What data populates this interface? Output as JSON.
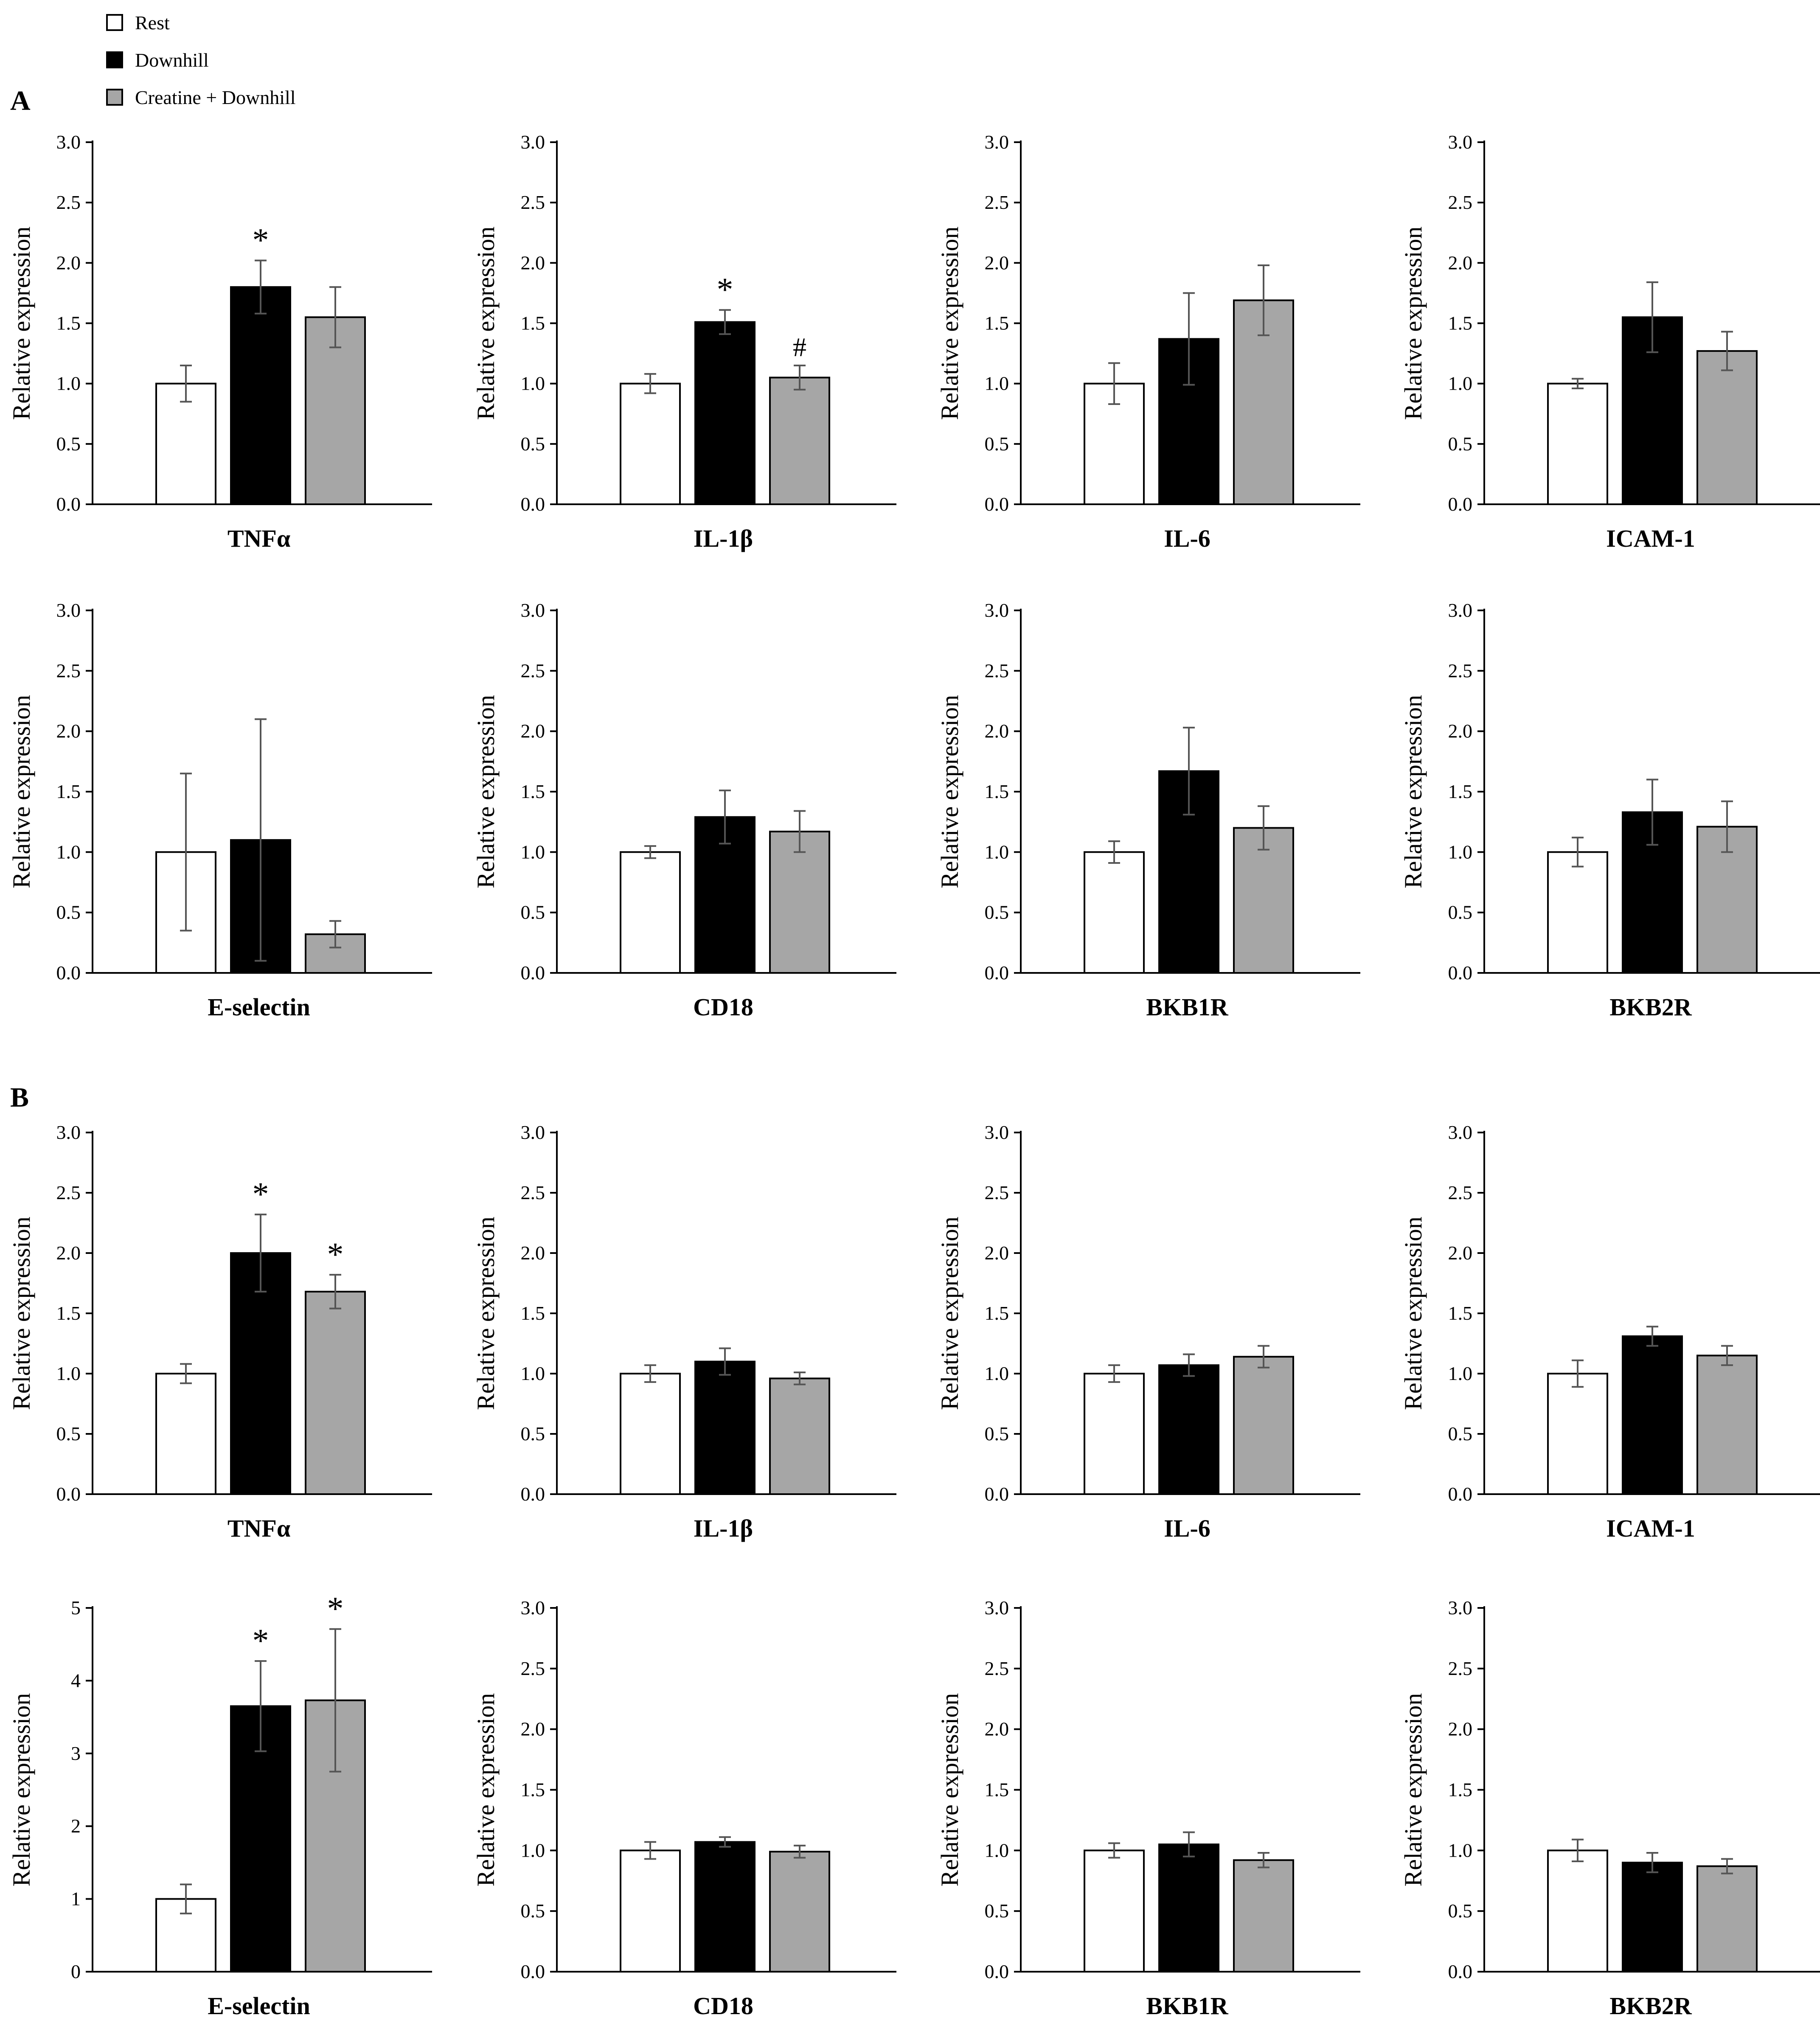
{
  "legend": {
    "rest": "Rest",
    "downhill": "Downhill",
    "creatine": "Creatine + Downhill"
  },
  "colors": {
    "rest": "#ffffff",
    "downhill": "#000000",
    "creatine": "#a6a6a6",
    "axis": "#000000",
    "errorbar": "#555555"
  },
  "panel_labels": {
    "a": "A",
    "b": "B"
  },
  "chart_data": [
    {
      "panel": "A",
      "type": "bar",
      "title": "TNFα",
      "xlabel": "TNFα",
      "ylabel": "Relative expression",
      "ylim": [
        0,
        3
      ],
      "yticks": [
        "0.0",
        "0.5",
        "1.0",
        "1.5",
        "2.0",
        "2.5",
        "3.0"
      ],
      "series": [
        {
          "name": "Rest",
          "value": 1.0,
          "error": 0.15
        },
        {
          "name": "Downhill",
          "value": 1.8,
          "error": 0.22,
          "mark": "*"
        },
        {
          "name": "Creatine + Downhill",
          "value": 1.55,
          "error": 0.25
        }
      ]
    },
    {
      "panel": "A",
      "type": "bar",
      "title": "IL-1β",
      "xlabel": "IL-1β",
      "ylabel": "Relative expression",
      "ylim": [
        0,
        3
      ],
      "yticks": [
        "0.0",
        "0.5",
        "1.0",
        "1.5",
        "2.0",
        "2.5",
        "3.0"
      ],
      "series": [
        {
          "name": "Rest",
          "value": 1.0,
          "error": 0.08
        },
        {
          "name": "Downhill",
          "value": 1.51,
          "error": 0.1,
          "mark": "*"
        },
        {
          "name": "Creatine + Downhill",
          "value": 1.05,
          "error": 0.1,
          "mark": "#"
        }
      ]
    },
    {
      "panel": "A",
      "type": "bar",
      "title": "IL-6",
      "xlabel": "IL-6",
      "ylabel": "Relative expression",
      "ylim": [
        0,
        3
      ],
      "yticks": [
        "0.0",
        "0.5",
        "1.0",
        "1.5",
        "2.0",
        "2.5",
        "3.0"
      ],
      "series": [
        {
          "name": "Rest",
          "value": 1.0,
          "error": 0.17
        },
        {
          "name": "Downhill",
          "value": 1.37,
          "error": 0.38
        },
        {
          "name": "Creatine + Downhill",
          "value": 1.69,
          "error": 0.29
        }
      ]
    },
    {
      "panel": "A",
      "type": "bar",
      "title": "ICAM-1",
      "xlabel": "ICAM-1",
      "ylabel": "Relative expression",
      "ylim": [
        0,
        3
      ],
      "yticks": [
        "0.0",
        "0.5",
        "1.0",
        "1.5",
        "2.0",
        "2.5",
        "3.0"
      ],
      "series": [
        {
          "name": "Rest",
          "value": 1.0,
          "error": 0.04
        },
        {
          "name": "Downhill",
          "value": 1.55,
          "error": 0.29
        },
        {
          "name": "Creatine + Downhill",
          "value": 1.27,
          "error": 0.16
        }
      ]
    },
    {
      "panel": "A",
      "type": "bar",
      "title": "E-selectin",
      "xlabel": "E-selectin",
      "ylabel": "Relative expression",
      "ylim": [
        0,
        3
      ],
      "yticks": [
        "0.0",
        "0.5",
        "1.0",
        "1.5",
        "2.0",
        "2.5",
        "3.0"
      ],
      "series": [
        {
          "name": "Rest",
          "value": 1.0,
          "error": 0.65
        },
        {
          "name": "Downhill",
          "value": 1.1,
          "error": 1.0
        },
        {
          "name": "Creatine + Downhill",
          "value": 0.32,
          "error": 0.11
        }
      ]
    },
    {
      "panel": "A",
      "type": "bar",
      "title": "CD18",
      "xlabel": "CD18",
      "ylabel": "Relative expression",
      "ylim": [
        0,
        3
      ],
      "yticks": [
        "0.0",
        "0.5",
        "1.0",
        "1.5",
        "2.0",
        "2.5",
        "3.0"
      ],
      "series": [
        {
          "name": "Rest",
          "value": 1.0,
          "error": 0.05
        },
        {
          "name": "Downhill",
          "value": 1.29,
          "error": 0.22
        },
        {
          "name": "Creatine + Downhill",
          "value": 1.17,
          "error": 0.17
        }
      ]
    },
    {
      "panel": "A",
      "type": "bar",
      "title": "BKB1R",
      "xlabel": "BKB1R",
      "ylabel": "Relative expression",
      "ylim": [
        0,
        3
      ],
      "yticks": [
        "0.0",
        "0.5",
        "1.0",
        "1.5",
        "2.0",
        "2.5",
        "3.0"
      ],
      "series": [
        {
          "name": "Rest",
          "value": 1.0,
          "error": 0.09
        },
        {
          "name": "Downhill",
          "value": 1.67,
          "error": 0.36
        },
        {
          "name": "Creatine + Downhill",
          "value": 1.2,
          "error": 0.18
        }
      ]
    },
    {
      "panel": "A",
      "type": "bar",
      "title": "BKB2R",
      "xlabel": "BKB2R",
      "ylabel": "Relative expression",
      "ylim": [
        0,
        3
      ],
      "yticks": [
        "0.0",
        "0.5",
        "1.0",
        "1.5",
        "2.0",
        "2.5",
        "3.0"
      ],
      "series": [
        {
          "name": "Rest",
          "value": 1.0,
          "error": 0.12
        },
        {
          "name": "Downhill",
          "value": 1.33,
          "error": 0.27
        },
        {
          "name": "Creatine + Downhill",
          "value": 1.21,
          "error": 0.21
        }
      ]
    },
    {
      "panel": "B",
      "type": "bar",
      "title": "TNFα",
      "xlabel": "TNFα",
      "ylabel": "Relative expression",
      "ylim": [
        0,
        3
      ],
      "yticks": [
        "0.0",
        "0.5",
        "1.0",
        "1.5",
        "2.0",
        "2.5",
        "3.0"
      ],
      "series": [
        {
          "name": "Rest",
          "value": 1.0,
          "error": 0.08
        },
        {
          "name": "Downhill",
          "value": 2.0,
          "error": 0.32,
          "mark": "*"
        },
        {
          "name": "Creatine + Downhill",
          "value": 1.68,
          "error": 0.14,
          "mark": "*"
        }
      ]
    },
    {
      "panel": "B",
      "type": "bar",
      "title": "IL-1β",
      "xlabel": "IL-1β",
      "ylabel": "Relative expression",
      "ylim": [
        0,
        3
      ],
      "yticks": [
        "0.0",
        "0.5",
        "1.0",
        "1.5",
        "2.0",
        "2.5",
        "3.0"
      ],
      "series": [
        {
          "name": "Rest",
          "value": 1.0,
          "error": 0.07
        },
        {
          "name": "Downhill",
          "value": 1.1,
          "error": 0.11
        },
        {
          "name": "Creatine + Downhill",
          "value": 0.96,
          "error": 0.05
        }
      ]
    },
    {
      "panel": "B",
      "type": "bar",
      "title": "IL-6",
      "xlabel": "IL-6",
      "ylabel": "Relative expression",
      "ylim": [
        0,
        3
      ],
      "yticks": [
        "0.0",
        "0.5",
        "1.0",
        "1.5",
        "2.0",
        "2.5",
        "3.0"
      ],
      "series": [
        {
          "name": "Rest",
          "value": 1.0,
          "error": 0.07
        },
        {
          "name": "Downhill",
          "value": 1.07,
          "error": 0.09
        },
        {
          "name": "Creatine + Downhill",
          "value": 1.14,
          "error": 0.09
        }
      ]
    },
    {
      "panel": "B",
      "type": "bar",
      "title": "ICAM-1",
      "xlabel": "ICAM-1",
      "ylabel": "Relative expression",
      "ylim": [
        0,
        3
      ],
      "yticks": [
        "0.0",
        "0.5",
        "1.0",
        "1.5",
        "2.0",
        "2.5",
        "3.0"
      ],
      "series": [
        {
          "name": "Rest",
          "value": 1.0,
          "error": 0.11
        },
        {
          "name": "Downhill",
          "value": 1.31,
          "error": 0.08
        },
        {
          "name": "Creatine + Downhill",
          "value": 1.15,
          "error": 0.08
        }
      ]
    },
    {
      "panel": "B",
      "type": "bar",
      "title": "E-selectin",
      "xlabel": "E-selectin",
      "ylabel": "Relative expression",
      "ylim": [
        0,
        5
      ],
      "yticks": [
        "0",
        "1",
        "2",
        "3",
        "4",
        "5"
      ],
      "series": [
        {
          "name": "Rest",
          "value": 1.0,
          "error": 0.2
        },
        {
          "name": "Downhill",
          "value": 3.65,
          "error": 0.62,
          "mark": "*"
        },
        {
          "name": "Creatine + Downhill",
          "value": 3.73,
          "error": 0.98,
          "mark": "*"
        }
      ]
    },
    {
      "panel": "B",
      "type": "bar",
      "title": "CD18",
      "xlabel": "CD18",
      "ylabel": "Relative expression",
      "ylim": [
        0,
        3
      ],
      "yticks": [
        "0.0",
        "0.5",
        "1.0",
        "1.5",
        "2.0",
        "2.5",
        "3.0"
      ],
      "series": [
        {
          "name": "Rest",
          "value": 1.0,
          "error": 0.07
        },
        {
          "name": "Downhill",
          "value": 1.07,
          "error": 0.04
        },
        {
          "name": "Creatine + Downhill",
          "value": 0.99,
          "error": 0.05
        }
      ]
    },
    {
      "panel": "B",
      "type": "bar",
      "title": "BKB1R",
      "xlabel": "BKB1R",
      "ylabel": "Relative expression",
      "ylim": [
        0,
        3
      ],
      "yticks": [
        "0.0",
        "0.5",
        "1.0",
        "1.5",
        "2.0",
        "2.5",
        "3.0"
      ],
      "series": [
        {
          "name": "Rest",
          "value": 1.0,
          "error": 0.06
        },
        {
          "name": "Downhill",
          "value": 1.05,
          "error": 0.1
        },
        {
          "name": "Creatine + Downhill",
          "value": 0.92,
          "error": 0.06
        }
      ]
    },
    {
      "panel": "B",
      "type": "bar",
      "title": "BKB2R",
      "xlabel": "BKB2R",
      "ylabel": "Relative expression",
      "ylim": [
        0,
        3
      ],
      "yticks": [
        "0.0",
        "0.5",
        "1.0",
        "1.5",
        "2.0",
        "2.5",
        "3.0"
      ],
      "series": [
        {
          "name": "Rest",
          "value": 1.0,
          "error": 0.09
        },
        {
          "name": "Downhill",
          "value": 0.9,
          "error": 0.08
        },
        {
          "name": "Creatine + Downhill",
          "value": 0.87,
          "error": 0.06
        }
      ]
    }
  ]
}
